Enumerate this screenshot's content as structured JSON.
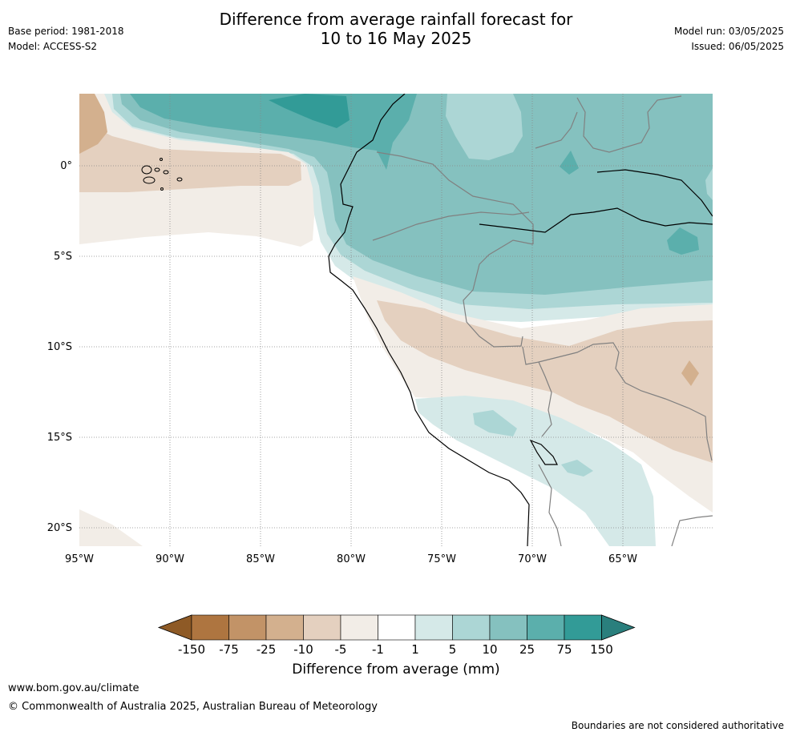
{
  "header": {
    "title_line1": "Difference from average rainfall forecast for",
    "title_line2": "10 to 16 May 2025",
    "base_period": "Base period: 1981-2018",
    "model": "Model: ACCESS-S2",
    "model_run": "Model run: 03/05/2025",
    "issued": "Issued: 06/05/2025"
  },
  "map": {
    "lon_labels": [
      "95°W",
      "90°W",
      "85°W",
      "80°W",
      "75°W",
      "70°W",
      "65°W"
    ],
    "lat_labels": [
      "0°",
      "5°S",
      "10°S",
      "15°S",
      "20°S"
    ]
  },
  "colorbar": {
    "tick_labels": [
      "-150",
      "-75",
      "-25",
      "-10",
      "-5",
      "-1",
      "1",
      "5",
      "10",
      "25",
      "75",
      "150"
    ],
    "colors": [
      "#8e5a26",
      "#ae7540",
      "#c29367",
      "#d3b08e",
      "#e4d0bf",
      "#f2ede7",
      "#ffffff",
      "#d5e9e8",
      "#acd6d5",
      "#85c1bf",
      "#5bafac",
      "#329b97",
      "#2a7f7d"
    ],
    "title": "Difference from average (mm)"
  },
  "footer": {
    "url": "www.bom.gov.au/climate",
    "copyright": "© Commonwealth of Australia 2025, Australian Bureau of Meteorology",
    "note": "Boundaries are not considered authoritative"
  }
}
